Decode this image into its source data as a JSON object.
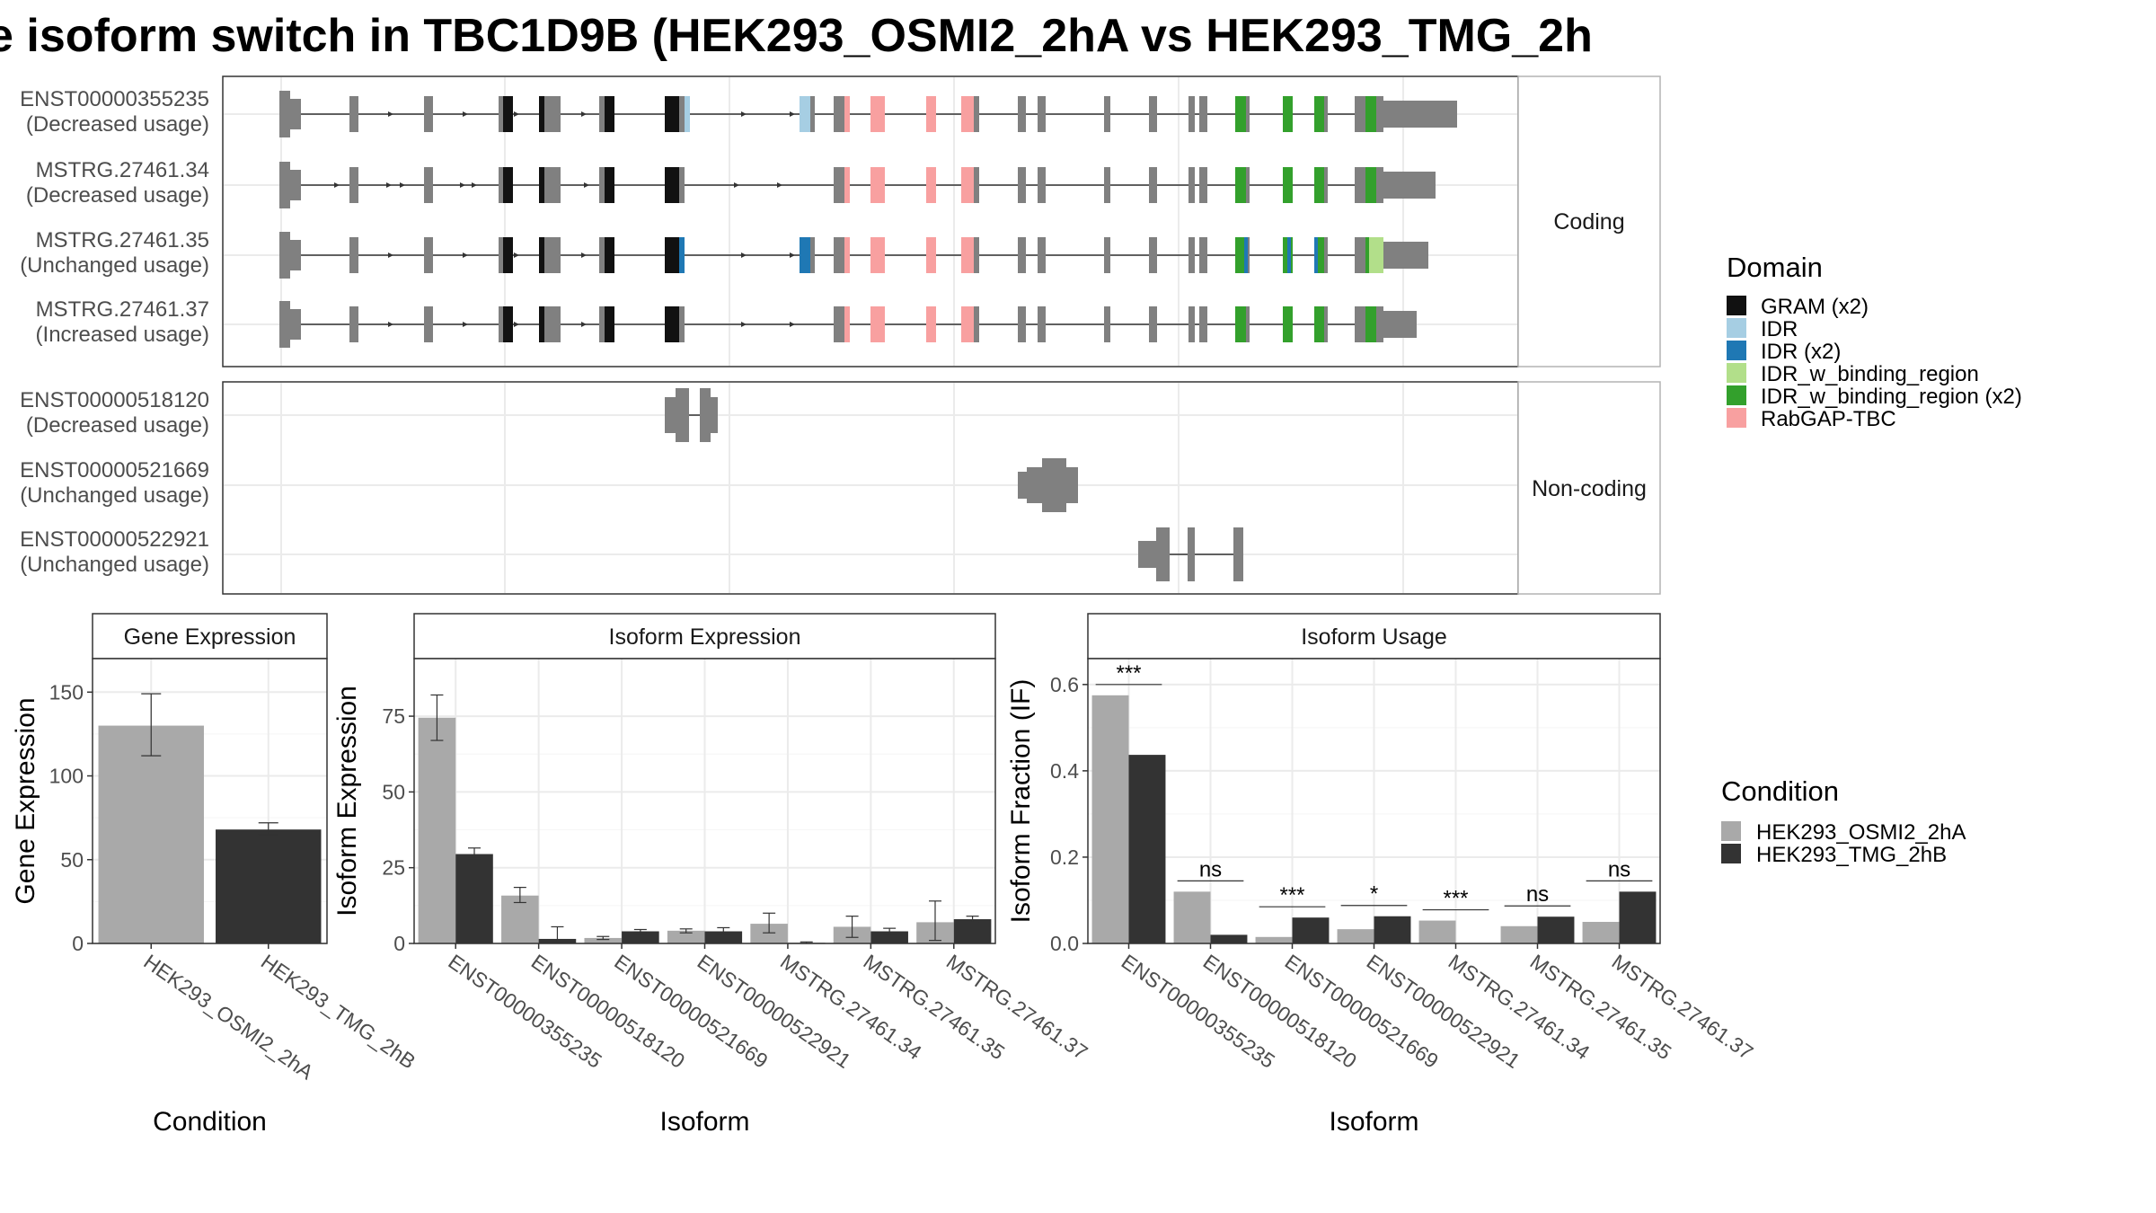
{
  "title": "e isoform switch in TBC1D9B (HEK293_OSMI2_2hA vs HEK293_TMG_2h",
  "colors": {
    "exon": "#808080",
    "GRAM (x2)": "#111111",
    "IDR": "#a6cee3",
    "IDR (x2)": "#1f78b4",
    "IDR_w_binding_region": "#b2df8a",
    "IDR_w_binding_region (x2)": "#33a02c",
    "RabGAP-TBC": "#f8a0a0",
    "HEK293_OSMI2_2hA": "#a9a9a9",
    "HEK293_TMG_2hB": "#333333"
  },
  "structure": {
    "coding_label": "Coding",
    "noncoding_label": "Non-coding",
    "coding": [
      {
        "name": "ENST00000355235",
        "usage": "(Decreased usage)"
      },
      {
        "name": "MSTRG.27461.34",
        "usage": "(Decreased usage)"
      },
      {
        "name": "MSTRG.27461.35",
        "usage": "(Unchanged usage)"
      },
      {
        "name": "MSTRG.27461.37",
        "usage": "(Increased usage)"
      }
    ],
    "noncoding": [
      {
        "name": "ENST00000518120",
        "usage": "(Decreased usage)"
      },
      {
        "name": "ENST00000521669",
        "usage": "(Unchanged usage)"
      },
      {
        "name": "ENST00000522921",
        "usage": "(Unchanged usage)"
      }
    ]
  },
  "legend_domain": {
    "title": "Domain",
    "items": [
      "GRAM (x2)",
      "IDR",
      "IDR (x2)",
      "IDR_w_binding_region",
      "IDR_w_binding_region (x2)",
      "RabGAP-TBC"
    ]
  },
  "legend_condition": {
    "title": "Condition",
    "items": [
      "HEK293_OSMI2_2hA",
      "HEK293_TMG_2hB"
    ]
  },
  "chart_data": [
    {
      "type": "bar",
      "title": "Gene Expression",
      "xlabel": "Condition",
      "ylabel": "Gene Expression",
      "categories": [
        "HEK293_OSMI2_2hA",
        "HEK293_TMG_2hB"
      ],
      "values": [
        130,
        68
      ],
      "errors": [
        [
          112,
          149
        ],
        [
          65,
          72
        ]
      ],
      "ylim": [
        0,
        170
      ],
      "yticks": [
        0,
        50,
        100,
        150
      ]
    },
    {
      "type": "bar",
      "title": "Isoform Expression",
      "xlabel": "Isoform",
      "ylabel": "Isoform Expression",
      "categories": [
        "ENST00000355235",
        "ENST00000518120",
        "ENST00000521669",
        "ENST00000522921",
        "MSTRG.27461.34",
        "MSTRG.27461.35",
        "MSTRG.27461.37"
      ],
      "series": [
        {
          "name": "HEK293_OSMI2_2hA",
          "values": [
            74.5,
            15.8,
            1.8,
            4.2,
            6.5,
            5.5,
            7
          ],
          "errors": [
            [
              67,
              82
            ],
            [
              13.5,
              18.5
            ],
            [
              1.3,
              2.3
            ],
            [
              3.5,
              4.8
            ],
            [
              3.5,
              10
            ],
            [
              2,
              9
            ],
            [
              1,
              14
            ]
          ]
        },
        {
          "name": "HEK293_TMG_2hB",
          "values": [
            29.5,
            1.5,
            4,
            4,
            0.2,
            4,
            8
          ],
          "errors": [
            [
              28,
              31.5
            ],
            [
              0.3,
              5.5
            ],
            [
              3.4,
              4.6
            ],
            [
              2.8,
              5.2
            ],
            [
              0,
              0.5
            ],
            [
              3,
              5
            ],
            [
              7,
              9
            ]
          ]
        }
      ],
      "ylim": [
        0,
        94
      ],
      "yticks": [
        0,
        25,
        50,
        75
      ]
    },
    {
      "type": "bar",
      "title": "Isoform Usage",
      "xlabel": "Isoform",
      "ylabel": "Isoform Fraction (IF)",
      "categories": [
        "ENST00000355235",
        "ENST00000518120",
        "ENST00000521669",
        "ENST00000522921",
        "MSTRG.27461.34",
        "MSTRG.27461.35",
        "MSTRG.27461.37"
      ],
      "series": [
        {
          "name": "HEK293_OSMI2_2hA",
          "values": [
            0.575,
            0.12,
            0.015,
            0.033,
            0.053,
            0.04,
            0.05
          ]
        },
        {
          "name": "HEK293_TMG_2hB",
          "values": [
            0.437,
            0.02,
            0.06,
            0.063,
            0.0,
            0.062,
            0.12
          ]
        }
      ],
      "significance": [
        "***",
        "ns",
        "***",
        "*",
        "***",
        "ns",
        "ns"
      ],
      "ylim": [
        0,
        0.66
      ],
      "yticks": [
        0.0,
        0.2,
        0.4,
        0.6
      ],
      "ytick_labels": [
        "0.0",
        "0.2",
        "0.4",
        "0.6"
      ]
    }
  ]
}
